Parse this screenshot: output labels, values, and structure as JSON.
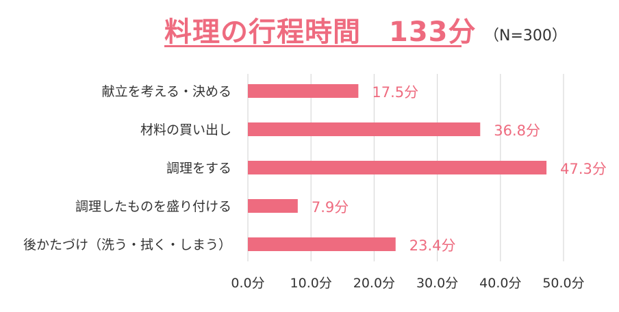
{
  "title": {
    "main": "料理の行程時間　133分",
    "sub": "（N=300）"
  },
  "colors": {
    "bar": "#ee6b7f",
    "label": "#ee6b7f",
    "grid": "#d9d9d9",
    "axis_text": "#333333"
  },
  "chart_data": {
    "type": "bar",
    "orientation": "horizontal",
    "categories": [
      "献立を考える・決める",
      "材料の買い出し",
      "調理をする",
      "調理したものを盛り付ける",
      "後かたづけ（洗う・拭く・しまう）"
    ],
    "values": [
      17.5,
      36.8,
      47.3,
      7.9,
      23.4
    ],
    "data_labels": [
      "17.5分",
      "36.8分",
      "47.3分",
      "7.9分",
      "23.4分"
    ],
    "xlim": [
      0,
      50
    ],
    "x_ticks": [
      0,
      10,
      20,
      30,
      40,
      50
    ],
    "x_tick_labels": [
      "0.0分",
      "10.0分",
      "20.0分",
      "30.0分",
      "40.0分",
      "50.0分"
    ],
    "grid": true
  }
}
